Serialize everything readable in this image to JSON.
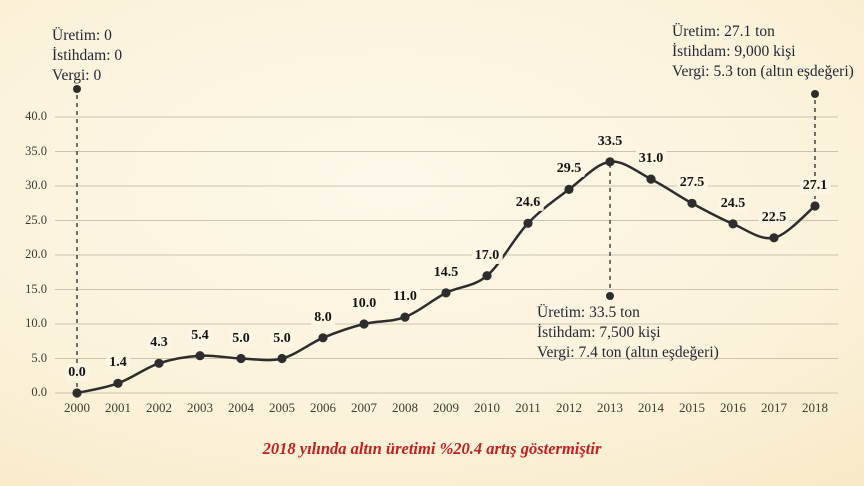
{
  "caption": {
    "text": "2018 yılında altın üretimi %20.4 artış göstermiştir"
  },
  "annotations": {
    "a2000": {
      "year": 2000,
      "lines": [
        "Üretim: 0",
        "İstihdam: 0",
        "Vergi: 0"
      ]
    },
    "a2013": {
      "year": 2013,
      "lines": [
        "Üretim: 33.5 ton",
        "İstihdam: 7,500 kişi",
        "Vergi: 7.4 ton (altın eşdeğeri)"
      ]
    },
    "a2018": {
      "year": 2018,
      "lines": [
        "Üretim: 27.1 ton",
        "İstihdam: 9,000 kişi",
        "Vergi: 5.3 ton (altın eşdeğeri)"
      ]
    }
  },
  "chart_data": {
    "type": "line",
    "title": "",
    "xlabel": "",
    "ylabel": "",
    "x": [
      2000,
      2001,
      2002,
      2003,
      2004,
      2005,
      2006,
      2007,
      2008,
      2009,
      2010,
      2011,
      2012,
      2013,
      2014,
      2015,
      2016,
      2017,
      2018
    ],
    "values": [
      0.0,
      1.4,
      4.3,
      5.4,
      5.0,
      5.0,
      8.0,
      10.0,
      11.0,
      14.5,
      17.0,
      24.6,
      29.5,
      33.5,
      31.0,
      27.5,
      24.5,
      22.5,
      27.1
    ],
    "point_labels": [
      "0.0",
      "1.4",
      "4.3",
      "5.4",
      "5.0",
      "5.0",
      "8.0",
      "10.0",
      "11.0",
      "14.5",
      "17.0",
      "24.6",
      "29.5",
      "33.5",
      "31.0",
      "27.5",
      "24.5",
      "22.5",
      "27.1"
    ],
    "ylim": [
      0,
      40
    ],
    "y_ticks": [
      0,
      5,
      10,
      15,
      20,
      25,
      30,
      35,
      40
    ],
    "y_tick_labels": [
      "0.0",
      "5.0",
      "10.0",
      "15.0",
      "20.0",
      "25.0",
      "30.0",
      "35.0",
      "40.0"
    ],
    "grid": "horizontal",
    "legend": "none",
    "marker": "circle"
  },
  "colors": {
    "background": "#faf0d6",
    "line": "#2d2d2d",
    "grid": "#aaa493",
    "dashed_leader": "#4f4f4f",
    "caption": "#c41e1e",
    "annotation_text": "#242836",
    "point_label_chip": "#fcf5e3"
  }
}
